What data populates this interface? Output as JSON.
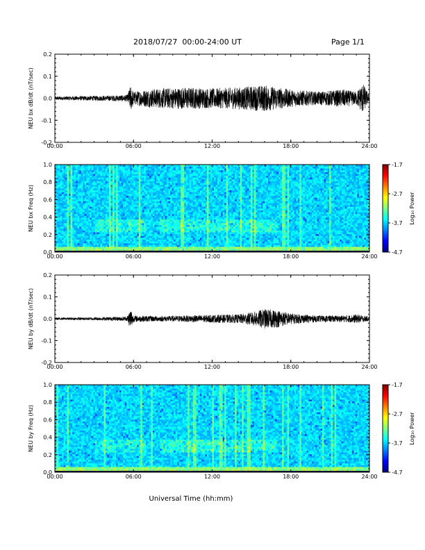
{
  "header": {
    "title": "2018/07/27  00:00-24:00 UT",
    "page_label": "Page 1/1"
  },
  "xlabel": "Universal Time (hh:mm)",
  "colorbar": {
    "label": "Log₁₀ Power",
    "ticks": [
      "-1.7",
      "-2.7",
      "-3.7",
      "-4.7"
    ],
    "range": [
      -4.7,
      -1.7
    ],
    "colormap": "jet"
  },
  "chart_data": [
    {
      "type": "line",
      "panel": "bx-timeseries",
      "ylabel": "NEU bx dB/dt (nT/sec)",
      "x_ticks": [
        "00:00",
        "06:00",
        "12:00",
        "18:00",
        "24:00"
      ],
      "y_ticks": [
        "0.2",
        "0.1",
        "0.0",
        "-0.1",
        "-0.2"
      ],
      "xlim": [
        "00:00",
        "24:00"
      ],
      "ylim": [
        -0.2,
        0.2
      ],
      "series": [
        {
          "color": "#000000",
          "envelope": {
            "hours": [
              0,
              2,
              4,
              5.5,
              5.8,
              6,
              7,
              8,
              10,
              12,
              14,
              15,
              16,
              17,
              18,
              19,
              20,
              21,
              22,
              23,
              23.5,
              24
            ],
            "amplitude": [
              0.008,
              0.01,
              0.012,
              0.015,
              0.06,
              0.03,
              0.04,
              0.045,
              0.05,
              0.045,
              0.05,
              0.055,
              0.06,
              0.05,
              0.04,
              0.035,
              0.03,
              0.035,
              0.04,
              0.03,
              0.07,
              0.01
            ]
          }
        }
      ]
    },
    {
      "type": "heatmap",
      "panel": "bx-spectrogram",
      "ylabel": "NEU bx Freq (Hz)",
      "x_ticks": [
        "00:00",
        "06:00",
        "12:00",
        "18:00",
        "24:00"
      ],
      "y_ticks": [
        "1.0",
        "0.8",
        "0.6",
        "0.4",
        "0.2",
        "0.0"
      ],
      "xlim": [
        "00:00",
        "24:00"
      ],
      "ylim": [
        0.0,
        1.0
      ]
    },
    {
      "type": "line",
      "panel": "by-timeseries",
      "ylabel": "NEU by dB/dt (nT/sec)",
      "x_ticks": [
        "00:00",
        "06:00",
        "12:00",
        "18:00",
        "24:00"
      ],
      "y_ticks": [
        "0.2",
        "0.1",
        "0.0",
        "-0.1",
        "-0.2"
      ],
      "xlim": [
        "00:00",
        "24:00"
      ],
      "ylim": [
        -0.2,
        0.2
      ],
      "series": [
        {
          "color": "#000000",
          "envelope": {
            "hours": [
              0,
              2,
              4,
              5.5,
              5.8,
              6,
              8,
              10,
              12,
              14,
              15,
              16,
              17,
              18,
              19,
              20,
              22,
              23,
              24
            ],
            "amplitude": [
              0.005,
              0.006,
              0.008,
              0.01,
              0.05,
              0.015,
              0.012,
              0.015,
              0.018,
              0.02,
              0.03,
              0.045,
              0.04,
              0.025,
              0.02,
              0.015,
              0.015,
              0.02,
              0.01
            ]
          }
        }
      ]
    },
    {
      "type": "heatmap",
      "panel": "by-spectrogram",
      "ylabel": "NEU by Freq (Hz)",
      "x_ticks": [
        "00:00",
        "06:00",
        "12:00",
        "18:00",
        "24:00"
      ],
      "y_ticks": [
        "1.0",
        "0.8",
        "0.6",
        "0.4",
        "0.2",
        "0.0"
      ],
      "xlim": [
        "00:00",
        "24:00"
      ],
      "ylim": [
        0.0,
        1.0
      ]
    }
  ]
}
